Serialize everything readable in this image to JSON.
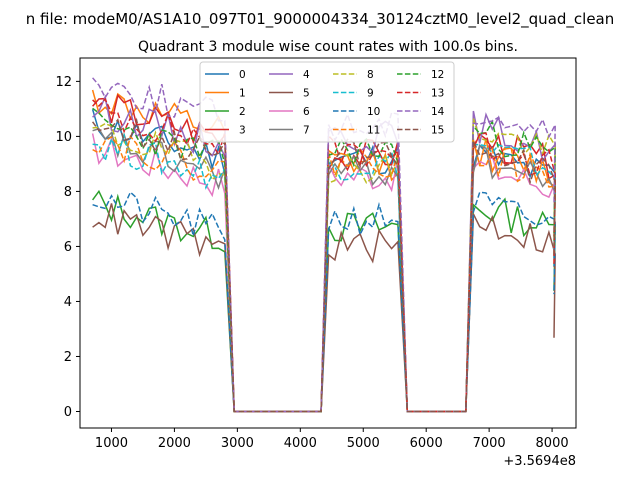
{
  "figure": {
    "suptitle": "n file: modeM0/AS1A10_097T01_9000004334_30124cztM0_level2_quad_clean",
    "title": "Quadrant 3 module wise count rates with 100.0s bins.",
    "x_offset_label": "+3.5694e8"
  },
  "chart_data": {
    "type": "line",
    "title": "Quadrant 3 module wise count rates with 100.0s bins.",
    "xlabel": "",
    "ylabel": "",
    "x_offset": 356940000,
    "xlim": [
      500,
      8380
    ],
    "ylim": [
      -0.6,
      12.85
    ],
    "xticks": [
      1000,
      2000,
      3000,
      4000,
      5000,
      6000,
      7000,
      8000
    ],
    "yticks": [
      0,
      2,
      4,
      6,
      8,
      10,
      12
    ],
    "grid": false,
    "legend": {
      "placement": "top-center",
      "columns": 4
    },
    "segments": [
      [
        700,
        2750
      ],
      [
        4450,
        5500
      ],
      [
        6750,
        8000
      ]
    ],
    "gap_drop": {
      "from": 2750,
      "to": 2950,
      "zero_until": 4330
    },
    "series": [
      {
        "name": "0",
        "color": "#1f77b4",
        "dash": "solid",
        "levels": [
          10.5,
          9.2,
          8.8
        ]
      },
      {
        "name": "1",
        "color": "#ff7f0e",
        "dash": "solid",
        "levels": [
          11.4,
          9.0,
          8.9
        ]
      },
      {
        "name": "2",
        "color": "#2ca02c",
        "dash": "solid",
        "levels": [
          7.6,
          6.7,
          6.9
        ]
      },
      {
        "name": "3",
        "color": "#d62728",
        "dash": "solid",
        "levels": [
          11.2,
          9.3,
          9.3
        ]
      },
      {
        "name": "4",
        "color": "#9467bd",
        "dash": "solid",
        "levels": [
          11.0,
          10.0,
          9.8
        ]
      },
      {
        "name": "5",
        "color": "#8c564b",
        "dash": "solid",
        "levels": [
          7.2,
          6.0,
          6.4
        ]
      },
      {
        "name": "6",
        "color": "#e377c2",
        "dash": "solid",
        "levels": [
          9.6,
          8.6,
          8.4
        ]
      },
      {
        "name": "7",
        "color": "#7f7f7f",
        "dash": "solid",
        "levels": [
          9.9,
          8.7,
          8.6
        ]
      },
      {
        "name": "8",
        "color": "#bcbd22",
        "dash": "dashed",
        "levels": [
          10.2,
          8.9,
          9.7
        ]
      },
      {
        "name": "9",
        "color": "#17becf",
        "dash": "dashed",
        "levels": [
          9.8,
          9.0,
          9.1
        ]
      },
      {
        "name": "10",
        "color": "#1f77b4",
        "dash": "dashed",
        "levels": [
          7.8,
          7.0,
          7.0
        ]
      },
      {
        "name": "11",
        "color": "#ff7f0e",
        "dash": "dashed",
        "levels": [
          10.0,
          9.1,
          8.8
        ]
      },
      {
        "name": "12",
        "color": "#2ca02c",
        "dash": "dashed",
        "levels": [
          10.5,
          9.5,
          9.6
        ]
      },
      {
        "name": "13",
        "color": "#d62728",
        "dash": "dashed",
        "levels": [
          11.0,
          9.5,
          9.2
        ]
      },
      {
        "name": "14",
        "color": "#9467bd",
        "dash": "dashed",
        "levels": [
          12.0,
          10.4,
          10.4
        ]
      },
      {
        "name": "15",
        "color": "#8c564b",
        "dash": "dashed",
        "levels": [
          10.6,
          9.3,
          8.9
        ]
      }
    ]
  }
}
